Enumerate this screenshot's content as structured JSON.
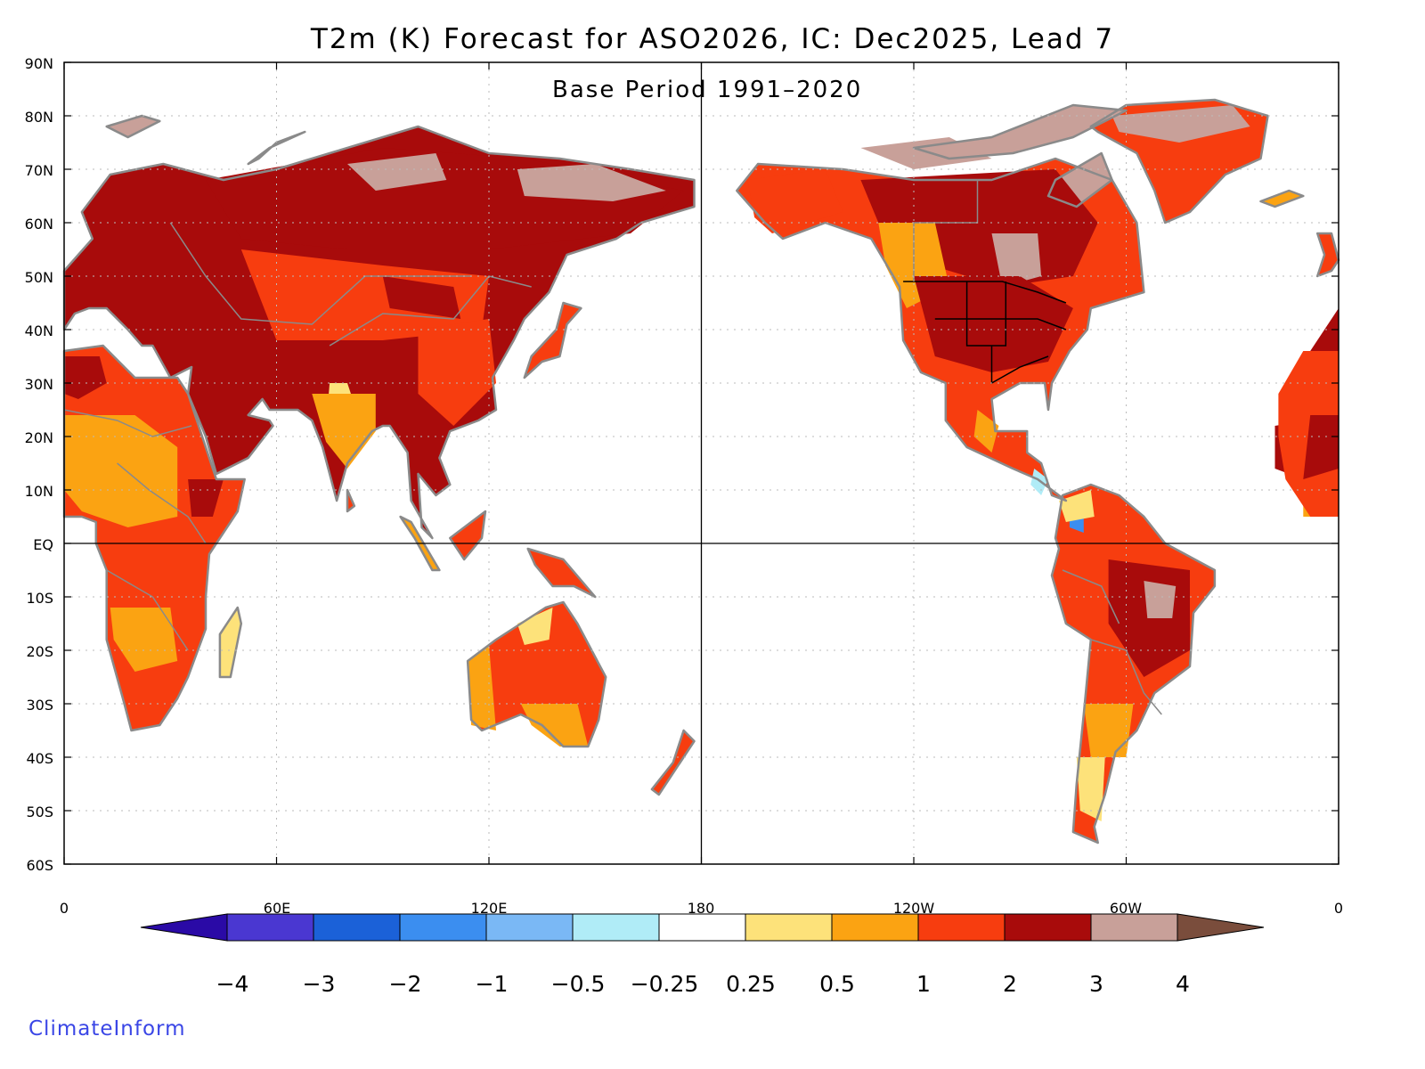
{
  "title": "T2m (K) Forecast for ASO2026, IC: Dec2025, Lead 7",
  "subtitle": "Base Period 1991–2020",
  "credit": "ClimateInform",
  "lat_labels": [
    "90N",
    "80N",
    "70N",
    "60N",
    "50N",
    "40N",
    "30N",
    "20N",
    "10N",
    "EQ",
    "10S",
    "20S",
    "30S",
    "40S",
    "50S",
    "60S"
  ],
  "lon_labels": [
    "0",
    "60E",
    "120E",
    "180",
    "120W",
    "60W",
    "0"
  ],
  "colorbar": {
    "labels": [
      "−4",
      "−3",
      "−2",
      "−1",
      "−0.5",
      "−0.25",
      "0.25",
      "0.5",
      "1",
      "2",
      "3",
      "4"
    ],
    "colors": [
      "#2a0aa6",
      "#4a37d1",
      "#1b61d8",
      "#3b8ef0",
      "#7ab8f5",
      "#b0ecf7",
      "#ffffff",
      "#fde27a",
      "#fba312",
      "#f73d0f",
      "#a80b0b",
      "#c8a099",
      "#7a4d3c"
    ]
  },
  "map": {
    "colors": {
      "ocean": "#ffffff",
      "coast": "#8a8a8a",
      "border": "#8a8a8a",
      "states": "#000000",
      "grid": "#bbbbbb"
    }
  }
}
